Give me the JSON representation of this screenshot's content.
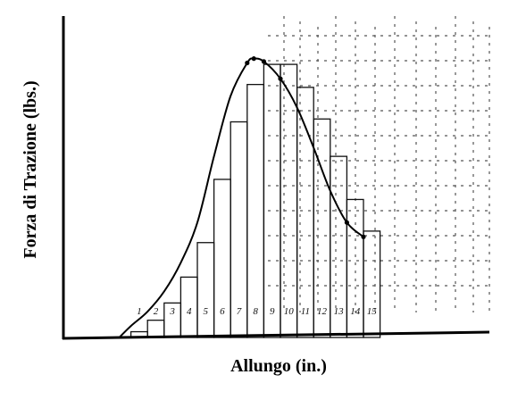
{
  "chart_data": {
    "type": "bar",
    "xlabel": "Allungo (in.)",
    "ylabel": "Forza di Trazione (lbs.)",
    "x_range": [
      0,
      17.5
    ],
    "y_range": [
      0,
      1
    ],
    "grid": false,
    "strip_labels": [
      "1",
      "2",
      "3",
      "4",
      "5",
      "6",
      "7",
      "8",
      "9",
      "10",
      "11",
      "12",
      "13",
      "14",
      "15"
    ],
    "values": [
      0.02,
      0.06,
      0.12,
      0.21,
      0.33,
      0.55,
      0.75,
      0.88,
      0.95,
      0.95,
      0.87,
      0.76,
      0.63,
      0.48,
      0.37
    ],
    "curve": {
      "x": [
        0.3,
        1.0,
        2.0,
        3.0,
        4.0,
        5.0,
        6.0,
        7.0,
        8.0,
        8.4,
        9.0,
        10.0,
        11.0,
        12.0,
        13.0,
        14.0,
        15.0
      ],
      "y": [
        0.0,
        0.04,
        0.09,
        0.16,
        0.26,
        0.4,
        0.63,
        0.84,
        0.955,
        0.97,
        0.96,
        0.9,
        0.8,
        0.66,
        0.51,
        0.4,
        0.35
      ]
    },
    "markers": {
      "x": [
        8.0,
        8.4,
        9.0,
        10.0,
        14.0,
        15.0
      ],
      "y": [
        0.955,
        0.97,
        0.96,
        0.9,
        0.4,
        0.35
      ]
    }
  }
}
